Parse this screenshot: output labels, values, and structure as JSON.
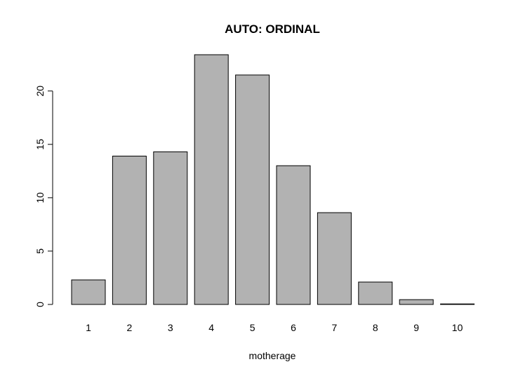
{
  "chart_data": {
    "type": "bar",
    "title": "AUTO: ORDINAL",
    "xlabel": "motherage",
    "ylabel": "",
    "categories": [
      "1",
      "2",
      "3",
      "4",
      "5",
      "6",
      "7",
      "8",
      "9",
      "10"
    ],
    "values": [
      2.3,
      13.9,
      14.3,
      23.4,
      21.5,
      13.0,
      8.6,
      2.1,
      0.45,
      0.05
    ],
    "ylim": [
      0,
      23.4
    ],
    "yticks": [
      0,
      5,
      10,
      15,
      20
    ],
    "grid": false,
    "legend": "none",
    "colors": {
      "bar_fill": "#b2b2b2",
      "bar_stroke": "#000000"
    }
  }
}
